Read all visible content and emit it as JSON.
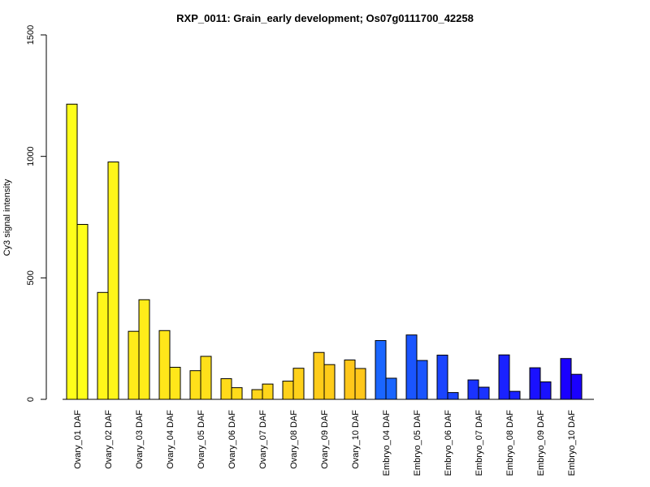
{
  "chart_data": {
    "type": "bar",
    "title": "RXP_0011: Grain_early development; Os07g0111700_42258",
    "xlabel": "",
    "ylabel": "Cy3 signal intensity",
    "ylim": [
      0,
      1500
    ],
    "yticks": [
      0,
      500,
      1000,
      1500
    ],
    "grid": false,
    "categories": [
      "Ovary_01 DAF",
      "Ovary_02 DAF",
      "Ovary_03 DAF",
      "Ovary_04 DAF",
      "Ovary_05 DAF",
      "Ovary_06 DAF",
      "Ovary_07 DAF",
      "Ovary_08 DAF",
      "Ovary_09 DAF",
      "Ovary_10 DAF",
      "Embryo_04 DAF",
      "Embryo_05 DAF",
      "Embryo_06 DAF",
      "Embryo_07 DAF",
      "Embryo_08 DAF",
      "Embryo_09 DAF",
      "Embryo_10 DAF"
    ],
    "series": [
      {
        "values": [
          1215,
          440,
          280,
          283,
          118,
          85,
          40,
          75,
          193,
          162,
          242,
          265,
          182,
          80,
          183,
          130,
          168
        ]
      },
      {
        "values": [
          720,
          977,
          410,
          132,
          177,
          48,
          63,
          128,
          143,
          127,
          87,
          160,
          28,
          50,
          33,
          72,
          103
        ]
      }
    ],
    "colors": [
      "#FFFF1A",
      "#FFF61A",
      "#FFEC1A",
      "#FFE61A",
      "#FFE01A",
      "#FFDB1A",
      "#FFD61A",
      "#FFD11A",
      "#FFCC1A",
      "#FFC71A",
      "#1A66FF",
      "#1A55FF",
      "#1A44FF",
      "#1A33FF",
      "#1A22FF",
      "#1A11FF",
      "#1A00FF"
    ]
  }
}
